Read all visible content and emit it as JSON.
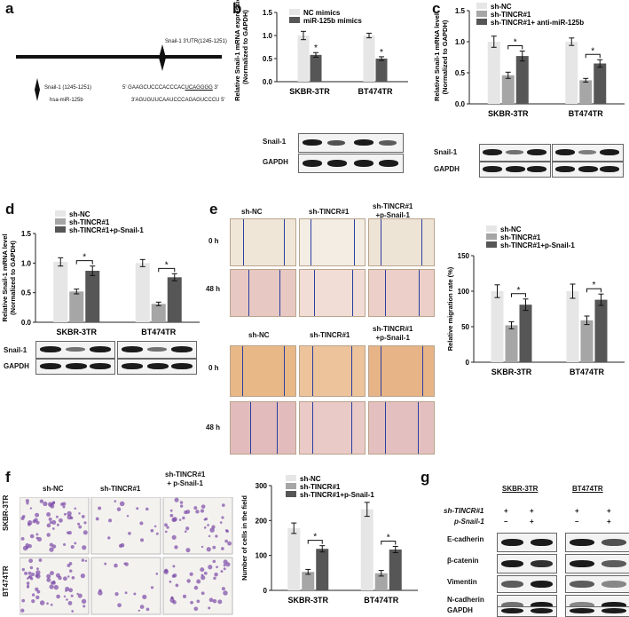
{
  "panels": {
    "a": "a",
    "b": "b",
    "c": "c",
    "d": "d",
    "e": "e",
    "f": "f",
    "g": "g"
  },
  "panel_a": {
    "utr_label": "Snail-1 3'UTR(1245-1251)",
    "snail_label": "Snail-1 (1245-1251)",
    "mir_label": "hsa-miR-125b",
    "snail_seq_pre": "5' GAAGCUCCCACCCAC",
    "snail_seq_site": "UCAGGGG",
    "snail_seq_end": " 3'",
    "mir_seq": "3'AGUGUUCAAUCCCAGAGUCCCU 5'"
  },
  "colors": {
    "light": "#e6e6e6",
    "mid": "#a6a6a6",
    "dark": "#565656",
    "wound_line": "#2a3fa0"
  },
  "chart_data": [
    {
      "id": "b",
      "type": "bar",
      "ylabel": "Relative Snail-1 mRNA expression\n(Normalized to GAPDH)",
      "ylim": [
        0,
        1.5
      ],
      "yticks": [
        0.0,
        0.5,
        1.0,
        1.5
      ],
      "categories": [
        "SKBR-3TR",
        "BT474TR"
      ],
      "series": [
        {
          "name": "NC mimics",
          "color": "#e6e6e6",
          "values": [
            1.0,
            1.0
          ],
          "err": [
            0.09,
            0.05
          ]
        },
        {
          "name": "miR-125b mimics",
          "color": "#565656",
          "values": [
            0.58,
            0.5
          ],
          "err": [
            0.05,
            0.04
          ]
        }
      ],
      "sig": [
        {
          "series": 1,
          "cat": 0,
          "text": "*"
        },
        {
          "series": 1,
          "cat": 1,
          "text": "*"
        }
      ]
    },
    {
      "id": "c",
      "type": "bar",
      "ylabel": "Relative Snail-1 mRNA level\n(Normalized to GAPDH)",
      "ylim": [
        0,
        1.5
      ],
      "yticks": [
        0.0,
        0.5,
        1.0,
        1.5
      ],
      "categories": [
        "SKBR-3TR",
        "BT474TR"
      ],
      "series": [
        {
          "name": "sh-NC",
          "color": "#e6e6e6",
          "values": [
            1.0,
            1.0
          ],
          "err": [
            0.09,
            0.06
          ]
        },
        {
          "name": "sh-TINCR#1",
          "color": "#a6a6a6",
          "values": [
            0.46,
            0.38
          ],
          "err": [
            0.05,
            0.03
          ]
        },
        {
          "name": "sh-TINCR#1+ anti-miR-125b",
          "color": "#565656",
          "values": [
            0.77,
            0.65
          ],
          "err": [
            0.08,
            0.06
          ]
        }
      ],
      "brackets": [
        {
          "cat": 0,
          "from": 1,
          "to": 2,
          "text": "*"
        },
        {
          "cat": 1,
          "from": 1,
          "to": 2,
          "text": "*"
        }
      ]
    },
    {
      "id": "d",
      "type": "bar",
      "ylabel": "Relative Snail-1 mRNA level\n(Normalized to GAPDH)",
      "ylim": [
        0,
        1.5
      ],
      "yticks": [
        0.0,
        0.5,
        1.0,
        1.5
      ],
      "categories": [
        "SKBR-3TR",
        "BT474TR"
      ],
      "series": [
        {
          "name": "sh-NC",
          "color": "#e6e6e6",
          "values": [
            1.02,
            1.0
          ],
          "err": [
            0.07,
            0.06
          ]
        },
        {
          "name": "sh-TINCR#1",
          "color": "#a6a6a6",
          "values": [
            0.52,
            0.31
          ],
          "err": [
            0.04,
            0.03
          ]
        },
        {
          "name": "sh-TINCR#1+p-Snail-1",
          "color": "#565656",
          "values": [
            0.87,
            0.76
          ],
          "err": [
            0.08,
            0.06
          ]
        }
      ],
      "brackets": [
        {
          "cat": 0,
          "from": 1,
          "to": 2,
          "text": "*"
        },
        {
          "cat": 1,
          "from": 1,
          "to": 2,
          "text": "*"
        }
      ]
    },
    {
      "id": "e",
      "type": "bar",
      "ylabel": "Relative migration rate (%)",
      "ylim": [
        0,
        150
      ],
      "yticks": [
        0,
        50,
        100,
        150
      ],
      "categories": [
        "SKBR-3TR",
        "BT474TR"
      ],
      "series": [
        {
          "name": "sh-NC",
          "color": "#e6e6e6",
          "values": [
            100,
            100
          ],
          "err": [
            9,
            10
          ]
        },
        {
          "name": "sh-TINCR#1",
          "color": "#a6a6a6",
          "values": [
            52,
            59
          ],
          "err": [
            5,
            6
          ]
        },
        {
          "name": "sh-TINCR#1+p-Snail-1",
          "color": "#565656",
          "values": [
            81,
            88
          ],
          "err": [
            8,
            8
          ]
        }
      ],
      "brackets": [
        {
          "cat": 0,
          "from": 1,
          "to": 2,
          "text": "*"
        },
        {
          "cat": 1,
          "from": 1,
          "to": 2,
          "text": "*"
        }
      ]
    },
    {
      "id": "f",
      "type": "bar",
      "ylabel": "Number of cells in the field",
      "ylim": [
        0,
        300
      ],
      "yticks": [
        0,
        100,
        200,
        300
      ],
      "categories": [
        "SKBR-3TR",
        "BT474TR"
      ],
      "series": [
        {
          "name": "sh-NC",
          "color": "#e6e6e6",
          "values": [
            178,
            232
          ],
          "err": [
            15,
            20
          ]
        },
        {
          "name": "sh-TINCR#1",
          "color": "#a6a6a6",
          "values": [
            53,
            49
          ],
          "err": [
            7,
            8
          ]
        },
        {
          "name": "sh-TINCR#1+p-Snail-1",
          "color": "#565656",
          "values": [
            119,
            117
          ],
          "err": [
            9,
            9
          ]
        }
      ],
      "brackets": [
        {
          "cat": 0,
          "from": 1,
          "to": 2,
          "text": "*"
        },
        {
          "cat": 1,
          "from": 1,
          "to": 2,
          "text": "*"
        }
      ]
    }
  ],
  "blots": {
    "b": [
      "Snail-1",
      "GAPDH"
    ],
    "c": [
      "Snail-1",
      "GAPDH"
    ],
    "d": [
      "Snail-1",
      "GAPDH"
    ],
    "g": [
      "E-cadherin",
      "β-catenin",
      "Vimentin",
      "N-cadherin",
      "GAPDH"
    ]
  },
  "panel_e": {
    "cols": [
      "sh-NC",
      "sh-TINCR#1",
      "sh-TINCR#1\n+p-Snail-1"
    ],
    "rows": [
      "0 h",
      "48 h"
    ]
  },
  "panel_f": {
    "cols": [
      "sh-NC",
      "sh-TINCR#1",
      "sh-TINCR#1\n+ p-Snail-1"
    ],
    "rows": [
      "SKBR-3TR",
      "BT474TR"
    ]
  },
  "panel_g": {
    "cell_lines": [
      "SKBR-3TR",
      "BT474TR"
    ],
    "row_labels": [
      "sh-TINCR#1",
      "p-Snail-1"
    ],
    "signs": [
      [
        "+",
        "+",
        "+",
        "+"
      ],
      [
        "–",
        "+",
        "–",
        "+"
      ]
    ]
  }
}
